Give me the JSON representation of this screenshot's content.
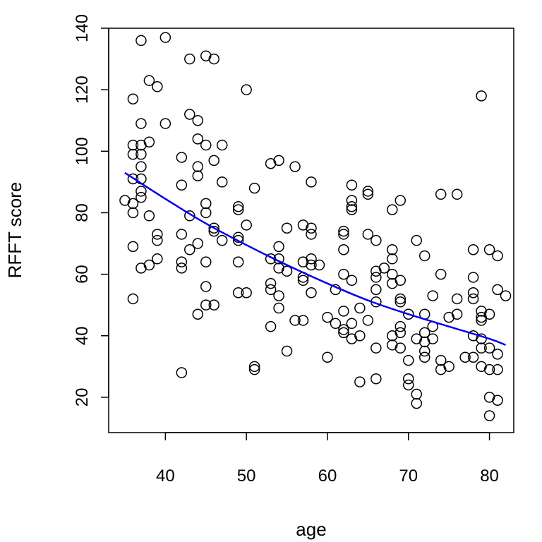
{
  "chart_data": {
    "type": "scatter",
    "title": "",
    "xlabel": "age",
    "ylabel": "RFFT score",
    "xlim": [
      33,
      83
    ],
    "ylim": [
      8.5,
      140
    ],
    "xticks": [
      40,
      50,
      60,
      70,
      80
    ],
    "yticks": [
      20,
      40,
      60,
      80,
      100,
      120,
      140
    ],
    "grid": false,
    "legend": "none",
    "colors": {
      "points": "#000000",
      "curve": "#0000EE",
      "axes": "#000000"
    },
    "series": [
      {
        "type": "scatter",
        "points": [
          [
            35,
            84
          ],
          [
            36,
            117
          ],
          [
            36,
            102
          ],
          [
            36,
            99
          ],
          [
            36,
            91
          ],
          [
            36,
            83
          ],
          [
            36,
            80
          ],
          [
            36,
            69
          ],
          [
            36,
            52
          ],
          [
            37,
            136
          ],
          [
            37,
            109
          ],
          [
            37,
            102
          ],
          [
            37,
            99
          ],
          [
            37,
            95
          ],
          [
            37,
            91
          ],
          [
            37,
            87
          ],
          [
            37,
            85
          ],
          [
            37,
            62
          ],
          [
            38,
            123
          ],
          [
            38,
            103
          ],
          [
            38,
            79
          ],
          [
            38,
            63
          ],
          [
            39,
            121
          ],
          [
            39,
            73
          ],
          [
            39,
            71
          ],
          [
            39,
            65
          ],
          [
            40,
            137
          ],
          [
            40,
            109
          ],
          [
            42,
            98
          ],
          [
            42,
            89
          ],
          [
            42,
            73
          ],
          [
            42,
            64
          ],
          [
            42,
            62
          ],
          [
            42,
            28
          ],
          [
            43,
            130
          ],
          [
            43,
            112
          ],
          [
            43,
            79
          ],
          [
            43,
            68
          ],
          [
            44,
            110
          ],
          [
            44,
            104
          ],
          [
            44,
            95
          ],
          [
            44,
            92
          ],
          [
            44,
            70
          ],
          [
            44,
            47
          ],
          [
            45,
            131
          ],
          [
            45,
            102
          ],
          [
            45,
            83
          ],
          [
            45,
            80
          ],
          [
            45,
            64
          ],
          [
            45,
            56
          ],
          [
            45,
            50
          ],
          [
            46,
            130
          ],
          [
            46,
            97
          ],
          [
            46,
            75
          ],
          [
            46,
            74
          ],
          [
            46,
            50
          ],
          [
            47,
            102
          ],
          [
            47,
            90
          ],
          [
            47,
            71
          ],
          [
            49,
            82
          ],
          [
            49,
            81
          ],
          [
            49,
            72
          ],
          [
            49,
            71
          ],
          [
            49,
            64
          ],
          [
            49,
            54
          ],
          [
            50,
            120
          ],
          [
            50,
            76
          ],
          [
            50,
            54
          ],
          [
            51,
            88
          ],
          [
            51,
            30
          ],
          [
            51,
            29
          ],
          [
            53,
            96
          ],
          [
            53,
            65
          ],
          [
            53,
            57
          ],
          [
            53,
            55
          ],
          [
            53,
            43
          ],
          [
            54,
            97
          ],
          [
            54,
            69
          ],
          [
            54,
            65
          ],
          [
            54,
            62
          ],
          [
            54,
            53
          ],
          [
            54,
            49
          ],
          [
            55,
            75
          ],
          [
            55,
            61
          ],
          [
            55,
            35
          ],
          [
            56,
            95
          ],
          [
            56,
            45
          ],
          [
            57,
            76
          ],
          [
            57,
            64
          ],
          [
            57,
            59
          ],
          [
            57,
            58
          ],
          [
            57,
            45
          ],
          [
            58,
            90
          ],
          [
            58,
            75
          ],
          [
            58,
            73
          ],
          [
            58,
            65
          ],
          [
            58,
            63
          ],
          [
            58,
            54
          ],
          [
            59,
            63
          ],
          [
            60,
            46
          ],
          [
            60,
            33
          ],
          [
            61,
            55
          ],
          [
            61,
            44
          ],
          [
            62,
            74
          ],
          [
            62,
            73
          ],
          [
            62,
            68
          ],
          [
            62,
            60
          ],
          [
            62,
            48
          ],
          [
            62,
            42
          ],
          [
            62,
            41
          ],
          [
            63,
            89
          ],
          [
            63,
            84
          ],
          [
            63,
            82
          ],
          [
            63,
            81
          ],
          [
            63,
            58
          ],
          [
            63,
            44
          ],
          [
            63,
            39
          ],
          [
            64,
            49
          ],
          [
            64,
            40
          ],
          [
            64,
            25
          ],
          [
            65,
            87
          ],
          [
            65,
            86
          ],
          [
            65,
            73
          ],
          [
            65,
            45
          ],
          [
            66,
            71
          ],
          [
            66,
            61
          ],
          [
            66,
            59
          ],
          [
            66,
            55
          ],
          [
            66,
            51
          ],
          [
            66,
            36
          ],
          [
            66,
            26
          ],
          [
            67,
            62
          ],
          [
            68,
            81
          ],
          [
            68,
            68
          ],
          [
            68,
            65
          ],
          [
            68,
            60
          ],
          [
            68,
            57
          ],
          [
            68,
            40
          ],
          [
            68,
            37
          ],
          [
            69,
            84
          ],
          [
            69,
            58
          ],
          [
            69,
            52
          ],
          [
            69,
            51
          ],
          [
            69,
            43
          ],
          [
            69,
            41
          ],
          [
            69,
            36
          ],
          [
            70,
            47
          ],
          [
            70,
            32
          ],
          [
            70,
            26
          ],
          [
            70,
            24
          ],
          [
            71,
            71
          ],
          [
            71,
            39
          ],
          [
            71,
            21
          ],
          [
            71,
            18
          ],
          [
            72,
            66
          ],
          [
            72,
            47
          ],
          [
            72,
            41
          ],
          [
            72,
            38
          ],
          [
            72,
            35
          ],
          [
            72,
            33
          ],
          [
            73,
            53
          ],
          [
            73,
            43
          ],
          [
            73,
            39
          ],
          [
            74,
            86
          ],
          [
            74,
            60
          ],
          [
            74,
            32
          ],
          [
            74,
            29
          ],
          [
            75,
            46
          ],
          [
            75,
            30
          ],
          [
            76,
            86
          ],
          [
            76,
            52
          ],
          [
            76,
            47
          ],
          [
            77,
            33
          ],
          [
            78,
            68
          ],
          [
            78,
            59
          ],
          [
            78,
            54
          ],
          [
            78,
            52
          ],
          [
            78,
            40
          ],
          [
            78,
            33
          ],
          [
            79,
            118
          ],
          [
            79,
            48
          ],
          [
            79,
            46
          ],
          [
            79,
            45
          ],
          [
            79,
            39
          ],
          [
            79,
            36
          ],
          [
            79,
            30
          ],
          [
            80,
            68
          ],
          [
            80,
            47
          ],
          [
            80,
            36
          ],
          [
            80,
            29
          ],
          [
            80,
            20
          ],
          [
            80,
            14
          ],
          [
            81,
            66
          ],
          [
            81,
            55
          ],
          [
            81,
            34
          ],
          [
            81,
            29
          ],
          [
            81,
            19
          ],
          [
            82,
            53
          ]
        ]
      },
      {
        "type": "line",
        "x": [
          35,
          40,
          45,
          50,
          55,
          60,
          65,
          70,
          75,
          80,
          82
        ],
        "y": [
          93,
          84.5,
          76.5,
          69.5,
          63,
          57,
          51.5,
          47,
          43,
          39,
          37
        ]
      }
    ]
  }
}
